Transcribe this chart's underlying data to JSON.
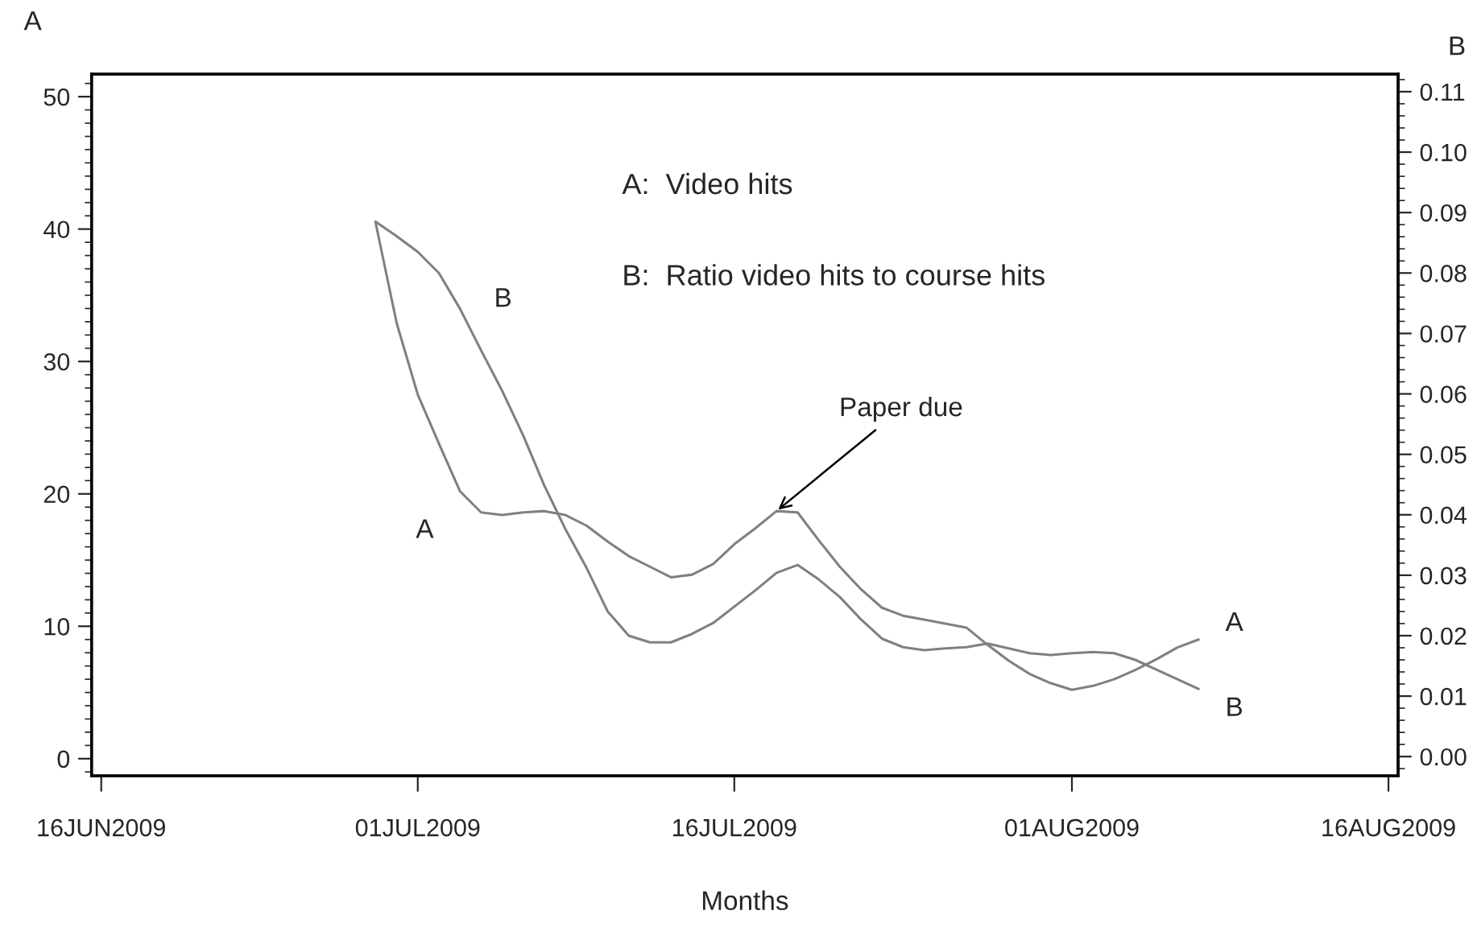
{
  "chart_data": {
    "type": "line",
    "xlabel": "Months",
    "ylabel": "A",
    "y2label": "B",
    "x": [
      "2009-06-29",
      "2009-06-30",
      "2009-07-01",
      "2009-07-02",
      "2009-07-03",
      "2009-07-04",
      "2009-07-05",
      "2009-07-06",
      "2009-07-07",
      "2009-07-08",
      "2009-07-09",
      "2009-07-10",
      "2009-07-11",
      "2009-07-12",
      "2009-07-13",
      "2009-07-14",
      "2009-07-15",
      "2009-07-16",
      "2009-07-17",
      "2009-07-18",
      "2009-07-19",
      "2009-07-20",
      "2009-07-21",
      "2009-07-22",
      "2009-07-23",
      "2009-07-24",
      "2009-07-25",
      "2009-07-26",
      "2009-07-27",
      "2009-07-28",
      "2009-07-29",
      "2009-07-30",
      "2009-07-31",
      "2009-08-01",
      "2009-08-02",
      "2009-08-03",
      "2009-08-04",
      "2009-08-05",
      "2009-08-06",
      "2009-08-07"
    ],
    "series": [
      {
        "name": "A",
        "color": "#808080",
        "values": [
          40.5,
          32.9,
          27.5,
          23.8,
          20.2,
          18.6,
          18.4,
          18.6,
          18.7,
          18.4,
          17.6,
          16.4,
          15.3,
          14.5,
          13.7,
          13.9,
          14.7,
          16.2,
          17.4,
          18.7,
          18.6,
          16.5,
          14.5,
          12.8,
          11.4,
          10.8,
          10.5,
          10.2,
          9.9,
          8.6,
          7.4,
          6.4,
          5.7,
          5.2,
          5.5,
          6.0,
          6.7,
          7.5,
          8.4,
          9.0
        ]
      },
      {
        "name": "B",
        "color": "#808080",
        "axis": "y2",
        "values": [
          0.0885,
          0.0861,
          0.0835,
          0.08,
          0.0741,
          0.0672,
          0.0605,
          0.0531,
          0.0448,
          0.0376,
          0.0312,
          0.024,
          0.02,
          0.0189,
          0.0189,
          0.0203,
          0.0221,
          0.0248,
          0.0275,
          0.0304,
          0.0317,
          0.0293,
          0.0264,
          0.0227,
          0.0195,
          0.0181,
          0.0176,
          0.0179,
          0.0181,
          0.0187,
          0.0179,
          0.0171,
          0.0168,
          0.0171,
          0.0173,
          0.0171,
          0.016,
          0.0144,
          0.0128,
          0.0112
        ]
      }
    ],
    "xlim": [
      "2009-06-15T13:00",
      "2009-08-16T11:00"
    ],
    "xticks": [
      {
        "value": "2009-06-16",
        "label": "16JUN2009"
      },
      {
        "value": "2009-07-01",
        "label": "01JUL2009"
      },
      {
        "value": "2009-07-16",
        "label": "16JUL2009"
      },
      {
        "value": "2009-08-01",
        "label": "01AUG2009"
      },
      {
        "value": "2009-08-16",
        "label": "16AUG2009"
      }
    ],
    "ylim": [
      -1.3,
      51.7
    ],
    "yticks": [
      0,
      10,
      20,
      30,
      40,
      50
    ],
    "y2lim": [
      -0.0032,
      0.1129
    ],
    "y2ticks": [
      {
        "value": 0,
        "label": "0.00"
      },
      {
        "value": 0.01,
        "label": "0.01"
      },
      {
        "value": 0.02,
        "label": "0.02"
      },
      {
        "value": 0.03,
        "label": "0.03"
      },
      {
        "value": 0.04,
        "label": "0.04"
      },
      {
        "value": 0.05,
        "label": "0.05"
      },
      {
        "value": 0.06,
        "label": "0.06"
      },
      {
        "value": 0.07,
        "label": "0.07"
      },
      {
        "value": 0.08,
        "label": "0.08"
      },
      {
        "value": 0.09,
        "label": "0.09"
      },
      {
        "value": 0.1,
        "label": "0.10"
      },
      {
        "value": 0.11,
        "label": "0.11"
      }
    ],
    "annotations": [
      "A:  Video hits",
      "B:  Ratio video hits to course hits",
      {
        "text": "Paper due",
        "x": "2009-07-18",
        "y": 18.7
      }
    ],
    "grid": false,
    "legend": false,
    "marker": "none",
    "line_style": "solid"
  }
}
